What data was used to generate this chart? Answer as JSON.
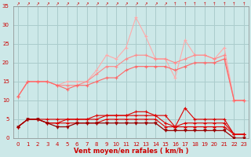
{
  "x": [
    0,
    1,
    2,
    3,
    4,
    5,
    6,
    7,
    8,
    9,
    10,
    11,
    12,
    13,
    14,
    15,
    16,
    17,
    18,
    19,
    20,
    21,
    22,
    23
  ],
  "line1": [
    11,
    15,
    15,
    15,
    14,
    15,
    15,
    15,
    18,
    22,
    21,
    24,
    32,
    27,
    21,
    21,
    16,
    26,
    22,
    22,
    21,
    24,
    10,
    10
  ],
  "line2": [
    11,
    15,
    15,
    15,
    14,
    14,
    14,
    15,
    17,
    19,
    19,
    21,
    22,
    22,
    21,
    21,
    20,
    21,
    22,
    22,
    21,
    22,
    10,
    10
  ],
  "line3": [
    11,
    15,
    15,
    15,
    14,
    13,
    14,
    14,
    15,
    16,
    16,
    18,
    19,
    19,
    19,
    19,
    18,
    19,
    20,
    20,
    20,
    21,
    10,
    10
  ],
  "line4": [
    3,
    5,
    5,
    5,
    5,
    5,
    5,
    5,
    6,
    6,
    6,
    6,
    7,
    7,
    6,
    6,
    3,
    8,
    5,
    5,
    5,
    5,
    1,
    1
  ],
  "line5": [
    3,
    5,
    5,
    4,
    4,
    5,
    5,
    5,
    5,
    6,
    6,
    6,
    6,
    6,
    6,
    4,
    3,
    4,
    4,
    4,
    4,
    4,
    1,
    1
  ],
  "line6": [
    3,
    5,
    5,
    4,
    4,
    4,
    4,
    4,
    4,
    5,
    5,
    5,
    5,
    5,
    5,
    3,
    3,
    3,
    3,
    3,
    3,
    3,
    1,
    1
  ],
  "line7": [
    3,
    5,
    5,
    4,
    3,
    3,
    4,
    4,
    4,
    4,
    4,
    4,
    4,
    4,
    4,
    2,
    2,
    2,
    2,
    2,
    2,
    2,
    0,
    0
  ],
  "bg_color": "#cce8e8",
  "grid_color": "#aacccc",
  "line1_color": "#ffaaaa",
  "line2_color": "#ff8888",
  "line3_color": "#ff6666",
  "line4_color": "#dd0000",
  "line5_color": "#dd0000",
  "line6_color": "#dd0000",
  "line7_color": "#990000",
  "tick_color": "#cc0000",
  "xlabel": "Vent moyen/en rafales ( km/h )",
  "ylim": [
    0,
    35
  ],
  "xlim": [
    -0.5,
    23.5
  ],
  "yticks": [
    0,
    5,
    10,
    15,
    20,
    25,
    30,
    35
  ],
  "xticks": [
    0,
    1,
    2,
    3,
    4,
    5,
    6,
    7,
    8,
    9,
    10,
    11,
    12,
    13,
    14,
    15,
    16,
    17,
    18,
    19,
    20,
    21,
    22,
    23
  ]
}
